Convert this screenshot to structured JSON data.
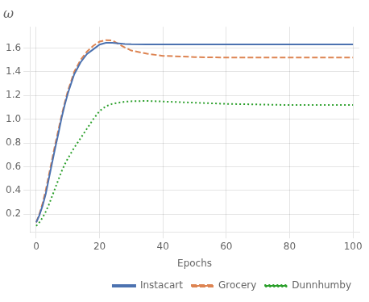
{
  "chart_data": {
    "type": "line",
    "title": "ω",
    "xlabel": "Epochs",
    "xlim": [
      -2,
      102
    ],
    "ylim": [
      0.05,
      1.78
    ],
    "xticks": [
      0,
      20,
      40,
      60,
      80,
      100
    ],
    "yticks": [
      0.2,
      0.4,
      0.6,
      0.8,
      {
        "value": 1.0,
        "label": "1.0"
      },
      1.2,
      1.4,
      1.6
    ],
    "grid": true,
    "legend": "lower right",
    "x": [
      0,
      1,
      2,
      3,
      4,
      5,
      6,
      7,
      8,
      9,
      10,
      12,
      14,
      16,
      18,
      20,
      22,
      24,
      26,
      28,
      30,
      35,
      40,
      50,
      60,
      70,
      80,
      90,
      100
    ],
    "series": [
      {
        "name": "Instacart",
        "color": "#4c72b0",
        "line_style": "solid",
        "values": [
          0.13,
          0.19,
          0.27,
          0.37,
          0.5,
          0.63,
          0.76,
          0.88,
          1.01,
          1.12,
          1.22,
          1.38,
          1.48,
          1.55,
          1.59,
          1.63,
          1.645,
          1.645,
          1.64,
          1.635,
          1.633,
          1.632,
          1.632,
          1.632,
          1.632,
          1.632,
          1.632,
          1.632,
          1.632
        ]
      },
      {
        "name": "Grocery",
        "color": "#dd8452",
        "line_style": "dashed",
        "values": [
          0.13,
          0.2,
          0.29,
          0.4,
          0.53,
          0.66,
          0.79,
          0.91,
          1.03,
          1.14,
          1.24,
          1.4,
          1.5,
          1.57,
          1.62,
          1.655,
          1.668,
          1.665,
          1.635,
          1.605,
          1.58,
          1.553,
          1.535,
          1.525,
          1.52,
          1.52,
          1.52,
          1.52,
          1.52
        ]
      },
      {
        "name": "Dunnhumby",
        "color": "#2ca02c",
        "line_style": "dotted",
        "values": [
          0.1,
          0.13,
          0.17,
          0.22,
          0.28,
          0.35,
          0.42,
          0.49,
          0.56,
          0.62,
          0.67,
          0.76,
          0.84,
          0.92,
          1.0,
          1.07,
          1.11,
          1.13,
          1.14,
          1.148,
          1.152,
          1.155,
          1.15,
          1.14,
          1.13,
          1.125,
          1.12,
          1.12,
          1.12
        ]
      }
    ]
  }
}
